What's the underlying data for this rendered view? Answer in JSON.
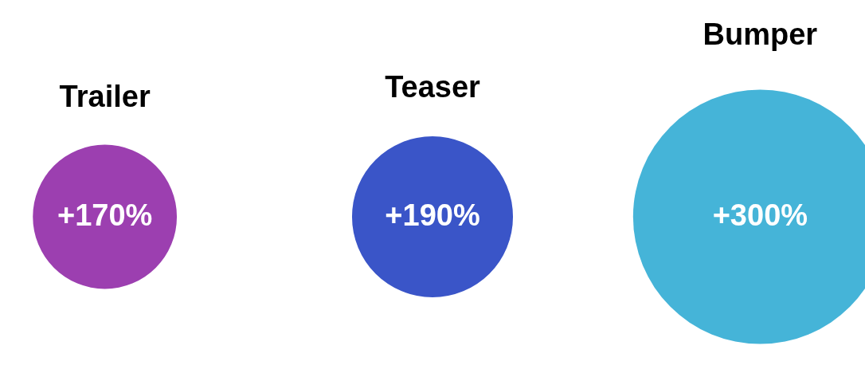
{
  "chart_data": {
    "type": "other",
    "categories": [
      "Trailer",
      "Teaser",
      "Bumper"
    ],
    "values": [
      170,
      190,
      300
    ],
    "value_labels": [
      "+170%",
      "+190%",
      "+300%"
    ],
    "colors": [
      "#9c3fb0",
      "#3a55c8",
      "#45b4d8"
    ]
  }
}
